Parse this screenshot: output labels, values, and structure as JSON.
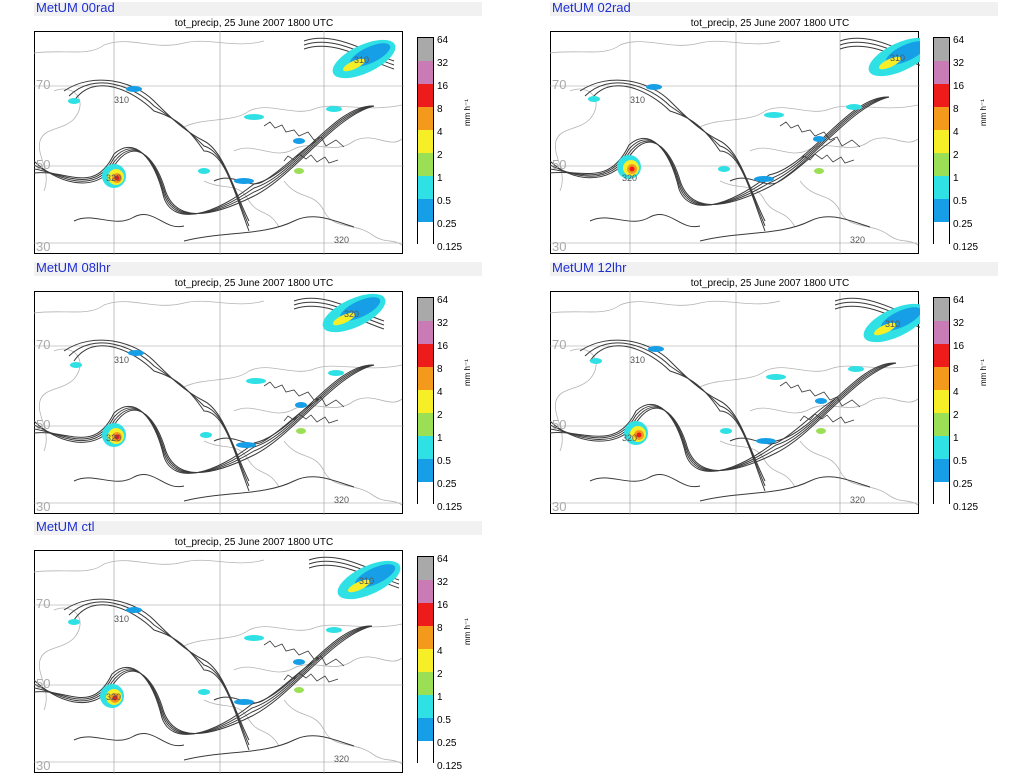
{
  "panels": [
    {
      "title": "MetUM 00rad",
      "subtitle": "tot_precip, 25 June 2007 1800 UTC",
      "contour_labels": [
        "310",
        "310",
        "320",
        "320"
      ],
      "lat_labels": [
        "70",
        "50",
        "30"
      ]
    },
    {
      "title": "MetUM 02rad",
      "subtitle": "tot_precip, 25 June 2007 1800 UTC",
      "contour_labels": [
        "310",
        "310",
        "320",
        "320"
      ],
      "lat_labels": [
        "70",
        "50",
        "30"
      ]
    },
    {
      "title": "MetUM 08lhr",
      "subtitle": "tot_precip, 25 June 2007 1800 UTC",
      "contour_labels": [
        "320",
        "310",
        "320",
        "320"
      ],
      "lat_labels": [
        "70",
        "50",
        "30"
      ]
    },
    {
      "title": "MetUM 12lhr",
      "subtitle": "tot_precip, 25 June 2007 1800 UTC",
      "contour_labels": [
        "310",
        "310",
        "320",
        "320"
      ],
      "lat_labels": [
        "70",
        "50",
        "30"
      ]
    },
    {
      "title": "MetUM ctl",
      "subtitle": "tot_precip, 25 June 2007 1800 UTC",
      "contour_labels": [
        "310",
        "310",
        "320",
        "320"
      ],
      "lat_labels": [
        "70",
        "50",
        "30"
      ]
    }
  ],
  "colorbar": {
    "units": "mm h⁻¹",
    "levels": [
      "64",
      "32",
      "16",
      "8",
      "4",
      "2",
      "1",
      "0.5",
      "0.25",
      "0.125"
    ],
    "colors": [
      "#a9a9a9",
      "#c97bb5",
      "#ee1b1b",
      "#f39a1d",
      "#f6ef28",
      "#9bdf54",
      "#2fe1e5",
      "#169fe6",
      "#ffffff"
    ]
  }
}
